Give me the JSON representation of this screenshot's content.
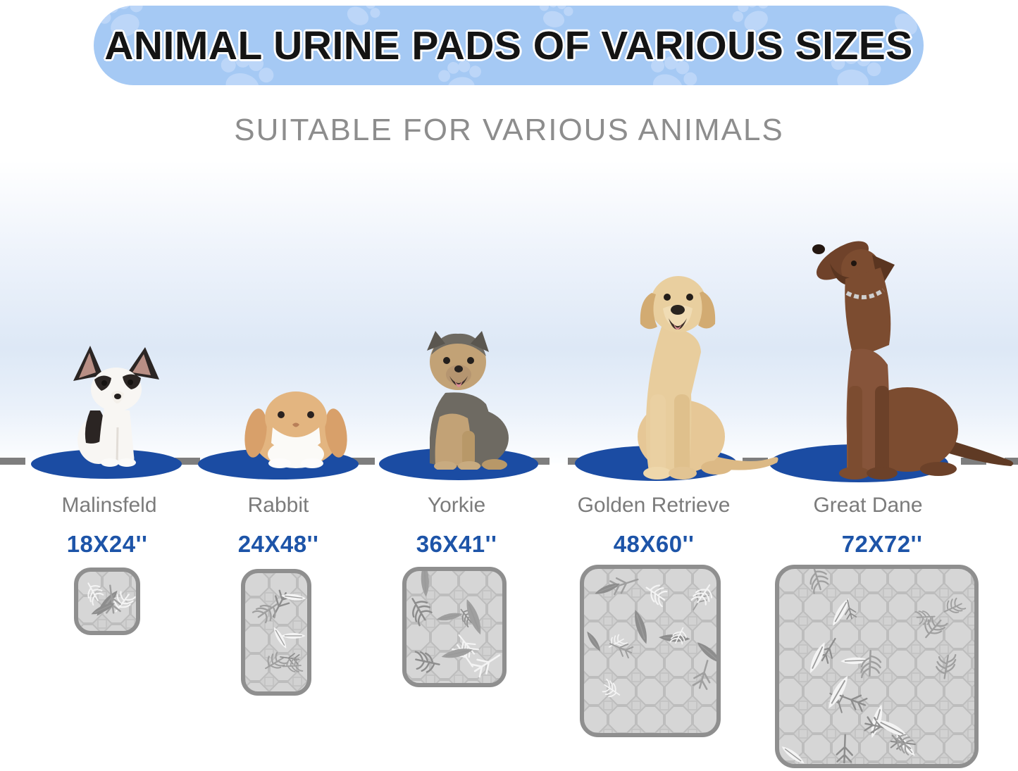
{
  "banner": {
    "title": "ANIMAL URINE PADS OF VARIOUS SIZES"
  },
  "subtitle": "SUITABLE FOR VARIOUS ANIMALS",
  "items": [
    {
      "name": "Malinsfeld",
      "size": "18X24''",
      "animal": "chihuahua"
    },
    {
      "name": "Rabbit",
      "size": "24X48''",
      "animal": "lop-rabbit"
    },
    {
      "name": "Yorkie",
      "size": "36X41''",
      "animal": "yorkshire-terrier"
    },
    {
      "name": "Golden Retrieve",
      "size": "48X60''",
      "animal": "golden-retriever"
    },
    {
      "name": "Great Dane",
      "size": "72X72''",
      "animal": "great-dane"
    }
  ],
  "colors": {
    "banner_bg": "#a5c9f4",
    "paw_print": "#bcd6f8",
    "platform_blue": "#1b4ca3",
    "size_text_blue": "#1d54a8",
    "name_text_gray": "#7b7b7b",
    "subtitle_gray": "#8d8d8d",
    "pad_fill": "#d3d3d3",
    "pad_border": "#8f8f8f",
    "dash_gray": "#7e7e7e"
  }
}
